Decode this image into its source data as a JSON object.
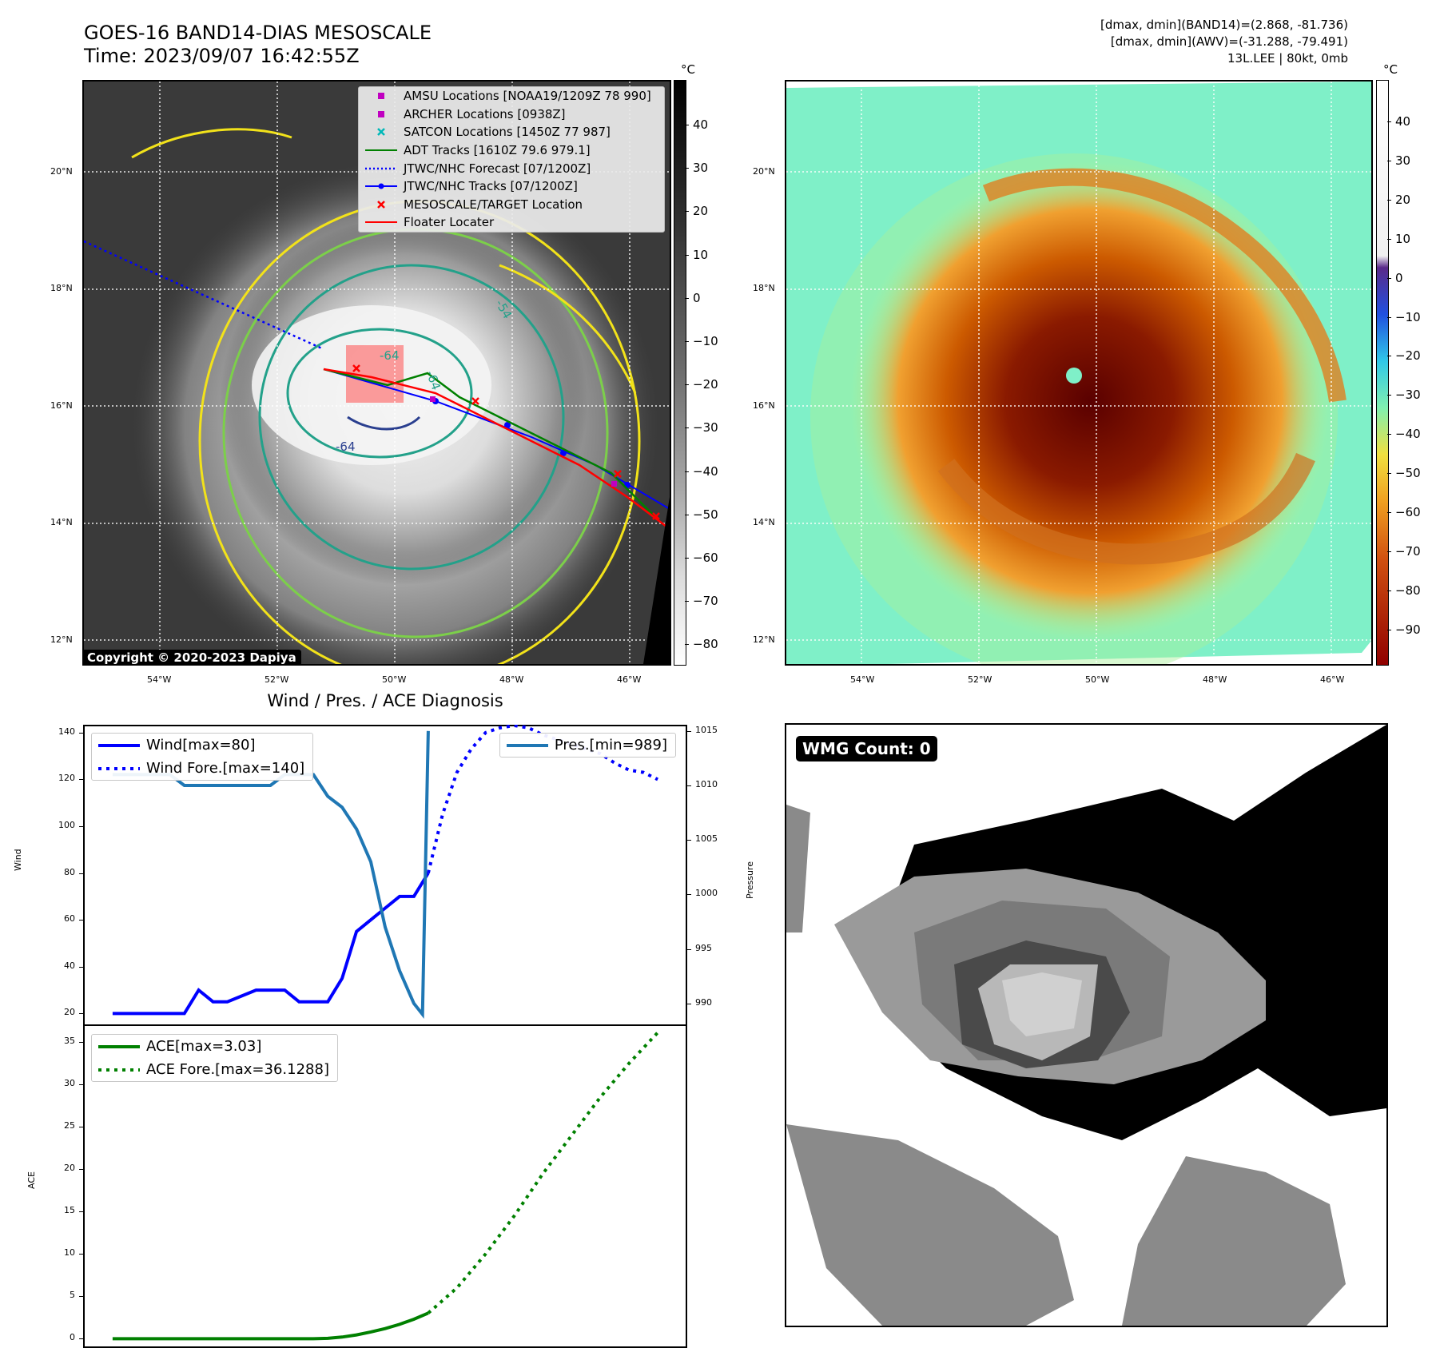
{
  "header": {
    "title_line1": "GOES-16 BAND14-DIAS MESOSCALE",
    "title_line2": "Time: 2023/09/07 16:42:55Z",
    "right_line1": "[dmax, dmin](BAND14)=(2.868, -81.736)",
    "right_line2": "[dmax, dmin](AWV)=(-31.288, -79.491)",
    "right_line3": "13L.LEE | 80kt, 0mb"
  },
  "maps": {
    "lat_labels": [
      "20°N",
      "18°N",
      "16°N",
      "14°N",
      "12°N"
    ],
    "lon_labels": [
      "54°W",
      "52°W",
      "50°W",
      "48°W",
      "46°W"
    ],
    "unit_label": "°C"
  },
  "left_map": {
    "colorbar_ticks": [
      "40",
      "30",
      "20",
      "10",
      "0",
      "−10",
      "−20",
      "−30",
      "−40",
      "−50",
      "−60",
      "−70",
      "−80"
    ],
    "copyright": "Copyright © 2020-2023 Dapiya",
    "contour_labels": [
      "-64",
      "-64",
      "-64",
      "-54",
      "-64",
      "-64"
    ],
    "legend": [
      {
        "label": "AMSU Locations [NOAA19/1209Z 78 990]",
        "marker": "square",
        "color": "#c000c0"
      },
      {
        "label": "ARCHER Locations [0938Z]",
        "marker": "square",
        "color": "#c000c0"
      },
      {
        "label": "SATCON Locations [1450Z 77 987]",
        "marker": "x",
        "color": "#00b8b8"
      },
      {
        "label": "ADT Tracks [1610Z 79.6 979.1]",
        "marker": "line",
        "color": "#008000"
      },
      {
        "label": "JTWC/NHC Forecast [07/1200Z]",
        "marker": "dotted",
        "color": "#0000ff"
      },
      {
        "label": "JTWC/NHC Tracks [07/1200Z]",
        "marker": "line-dot",
        "color": "#0000ff"
      },
      {
        "label": "MESOSCALE/TARGET Location",
        "marker": "x",
        "color": "#ff0000"
      },
      {
        "label": "Floater Locater",
        "marker": "line",
        "color": "#ff0000"
      }
    ]
  },
  "right_map": {
    "colorbar_ticks": [
      "40",
      "30",
      "20",
      "10",
      "0",
      "−10",
      "−20",
      "−30",
      "−40",
      "−50",
      "−60",
      "−70",
      "−80",
      "−90"
    ]
  },
  "diagnosis": {
    "title": "Wind / Pres. / ACE Diagnosis",
    "wind_ylabel": "Wind",
    "pres_ylabel": "Pressure",
    "ace_ylabel": "ACE",
    "wind_ticks": [
      "140",
      "120",
      "100",
      "80",
      "60",
      "40",
      "20"
    ],
    "pres_ticks": [
      "1015",
      "1010",
      "1005",
      "1000",
      "995",
      "990"
    ],
    "ace_ticks": [
      "35",
      "30",
      "25",
      "20",
      "15",
      "10",
      "5",
      "0"
    ],
    "legend_wind": [
      "Wind[max=80]",
      "Wind Fore.[max=140]"
    ],
    "legend_pres": [
      "Pres.[min=989]"
    ],
    "legend_ace": [
      "ACE[max=3.03]",
      "ACE Fore.[max=36.1288]"
    ]
  },
  "wmg": {
    "badge": "WMG Count: 0"
  },
  "colors": {
    "wind": "#0000ff",
    "pressure": "#1f77b4",
    "ace": "#008000",
    "contour_yellow": "#f2e21a",
    "contour_green": "#7ccf4a",
    "contour_teal": "#23a18a",
    "contour_navy": "#2a3f8f"
  },
  "chart_data": [
    {
      "type": "line",
      "title": "Wind / Pres. / ACE Diagnosis",
      "ylabel": "Wind",
      "ylim": [
        15,
        143
      ],
      "series": [
        {
          "name": "Wind[max=80]",
          "x": [
            0,
            3,
            5,
            6,
            7,
            8,
            10,
            11,
            12,
            13,
            14,
            15,
            16,
            17,
            18,
            19,
            20,
            21,
            22
          ],
          "values": [
            20,
            20,
            20,
            30,
            25,
            25,
            30,
            30,
            30,
            25,
            25,
            25,
            35,
            55,
            60,
            65,
            70,
            70,
            80
          ]
        },
        {
          "name": "Wind Fore.[max=140]",
          "x": [
            22,
            23,
            24,
            25,
            26,
            27,
            28,
            29,
            30,
            31,
            32,
            33,
            34,
            35,
            36,
            37,
            38
          ],
          "values": [
            80,
            105,
            123,
            133,
            140,
            142,
            143,
            142,
            139,
            137,
            135,
            133,
            131,
            127,
            124,
            123,
            120
          ]
        }
      ]
    },
    {
      "type": "line",
      "ylabel": "Pressure",
      "ylim": [
        988,
        1015.5
      ],
      "series": [
        {
          "name": "Pres.[min=989]",
          "x": [
            0,
            3,
            4,
            5,
            7,
            8,
            9,
            11,
            12,
            13,
            14,
            15,
            16,
            17,
            18,
            19,
            20,
            21,
            21.6,
            22
          ],
          "values": [
            1011,
            1011,
            1011,
            1010,
            1010,
            1010,
            1010,
            1010,
            1011,
            1011,
            1011,
            1009,
            1008,
            1006,
            1003,
            997,
            993,
            990,
            989,
            1015
          ]
        }
      ]
    },
    {
      "type": "line",
      "ylabel": "ACE",
      "ylim": [
        -1,
        37
      ],
      "series": [
        {
          "name": "ACE[max=3.03]",
          "x": [
            0,
            5,
            10,
            14,
            15,
            16,
            17,
            18,
            19,
            20,
            21,
            22
          ],
          "values": [
            0,
            0,
            0,
            0,
            0.05,
            0.2,
            0.45,
            0.8,
            1.2,
            1.7,
            2.3,
            3.03
          ]
        },
        {
          "name": "ACE Fore.[max=36.1288]",
          "x": [
            22,
            24,
            26,
            28,
            30,
            32,
            34,
            36,
            38
          ],
          "values": [
            3.03,
            6,
            10,
            14.5,
            19.5,
            24,
            28.5,
            32.5,
            36.13
          ]
        }
      ]
    }
  ]
}
